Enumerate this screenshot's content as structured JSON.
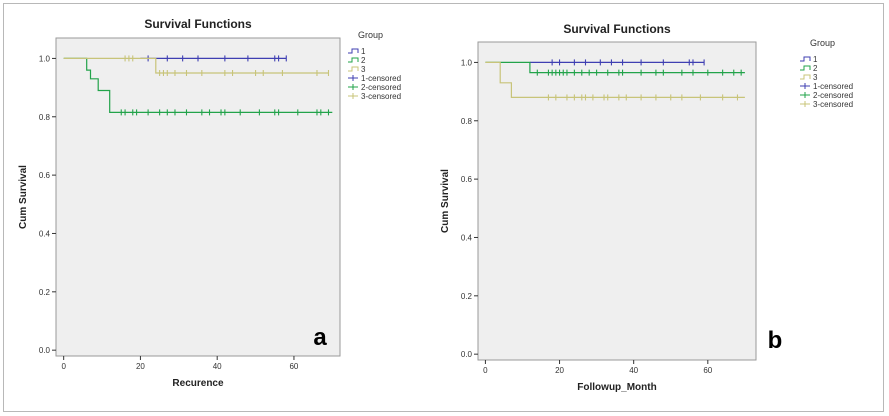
{
  "colors": {
    "group1": "#3f3fb2",
    "group2": "#22a34a",
    "group3": "#c8c479",
    "plot_bg": "#efefef",
    "axis": "#333333"
  },
  "chart_data": [
    {
      "type": "line",
      "subtype": "kaplan-meier",
      "panel_label": "a",
      "title": "Survival Functions",
      "xlabel": "Recurence",
      "ylabel": "Cum Survival",
      "xlim": [
        -2,
        72
      ],
      "ylim": [
        -0.02,
        1.07
      ],
      "xticks": [
        0,
        20,
        40,
        60
      ],
      "yticks": [
        0.0,
        0.2,
        0.4,
        0.6,
        0.8,
        1.0
      ],
      "ytick_labels": [
        "0.0",
        "0.2",
        "0.4",
        "0.6",
        "0.8",
        "1.0"
      ],
      "legend": {
        "title": "Group",
        "position": "right",
        "entries": [
          "1",
          "2",
          "3",
          "1-censored",
          "2-censored",
          "3-censored"
        ]
      },
      "series": [
        {
          "name": "1",
          "step": [
            [
              20,
              1.0
            ],
            [
              58,
              1.0
            ]
          ],
          "censored": [
            [
              22,
              1.0
            ],
            [
              27,
              1.0
            ],
            [
              31,
              1.0
            ],
            [
              35,
              1.0
            ],
            [
              42,
              1.0
            ],
            [
              48,
              1.0
            ],
            [
              55,
              1.0
            ],
            [
              56,
              1.0
            ],
            [
              58,
              1.0
            ]
          ]
        },
        {
          "name": "2",
          "step": [
            [
              0,
              1.0
            ],
            [
              6,
              1.0
            ],
            [
              6,
              0.96
            ],
            [
              7,
              0.96
            ],
            [
              7,
              0.93
            ],
            [
              9,
              0.93
            ],
            [
              9,
              0.89
            ],
            [
              12,
              0.89
            ],
            [
              12,
              0.815
            ],
            [
              70,
              0.815
            ]
          ],
          "censored": [
            [
              15,
              0.815
            ],
            [
              16,
              0.815
            ],
            [
              18,
              0.815
            ],
            [
              19,
              0.815
            ],
            [
              22,
              0.815
            ],
            [
              25,
              0.815
            ],
            [
              27,
              0.815
            ],
            [
              29,
              0.815
            ],
            [
              32,
              0.815
            ],
            [
              36,
              0.815
            ],
            [
              38,
              0.815
            ],
            [
              41,
              0.815
            ],
            [
              42,
              0.815
            ],
            [
              46,
              0.815
            ],
            [
              51,
              0.815
            ],
            [
              55,
              0.815
            ],
            [
              56,
              0.815
            ],
            [
              61,
              0.815
            ],
            [
              66,
              0.815
            ],
            [
              67,
              0.815
            ],
            [
              69,
              0.815
            ]
          ]
        },
        {
          "name": "3",
          "step": [
            [
              0,
              1.0
            ],
            [
              24,
              1.0
            ],
            [
              24,
              0.95
            ],
            [
              69,
              0.95
            ]
          ],
          "censored": [
            [
              16,
              1.0
            ],
            [
              17,
              1.0
            ],
            [
              18,
              1.0
            ],
            [
              25,
              0.95
            ],
            [
              26,
              0.95
            ],
            [
              27,
              0.95
            ],
            [
              29,
              0.95
            ],
            [
              32,
              0.95
            ],
            [
              36,
              0.95
            ],
            [
              42,
              0.95
            ],
            [
              44,
              0.95
            ],
            [
              50,
              0.95
            ],
            [
              52,
              0.95
            ],
            [
              57,
              0.95
            ],
            [
              66,
              0.95
            ],
            [
              69,
              0.95
            ]
          ]
        }
      ]
    },
    {
      "type": "line",
      "subtype": "kaplan-meier",
      "panel_label": "b",
      "title": "Survival Functions",
      "xlabel": "Followup_Month",
      "ylabel": "Cum Survival",
      "xlim": [
        -2,
        73
      ],
      "ylim": [
        -0.02,
        1.07
      ],
      "xticks": [
        0,
        20,
        40,
        60
      ],
      "yticks": [
        0.0,
        0.2,
        0.4,
        0.6,
        0.8,
        1.0
      ],
      "ytick_labels": [
        "0.0",
        "0.2",
        "0.4",
        "0.6",
        "0.8",
        "1.0"
      ],
      "legend": {
        "title": "Group",
        "position": "right",
        "entries": [
          "1",
          "2",
          "3",
          "1-censored",
          "2-censored",
          "3-censored"
        ]
      },
      "series": [
        {
          "name": "1",
          "step": [
            [
              12,
              1.0
            ],
            [
              59,
              1.0
            ]
          ],
          "censored": [
            [
              18,
              1.0
            ],
            [
              20,
              1.0
            ],
            [
              24,
              1.0
            ],
            [
              27,
              1.0
            ],
            [
              31,
              1.0
            ],
            [
              34,
              1.0
            ],
            [
              37,
              1.0
            ],
            [
              42,
              1.0
            ],
            [
              48,
              1.0
            ],
            [
              55,
              1.0
            ],
            [
              56,
              1.0
            ],
            [
              59,
              1.0
            ]
          ]
        },
        {
          "name": "2",
          "step": [
            [
              0,
              1.0
            ],
            [
              12,
              1.0
            ],
            [
              12,
              0.965
            ],
            [
              70,
              0.965
            ]
          ],
          "censored": [
            [
              14,
              0.965
            ],
            [
              17,
              0.965
            ],
            [
              18,
              0.965
            ],
            [
              19,
              0.965
            ],
            [
              20,
              0.965
            ],
            [
              21,
              0.965
            ],
            [
              22,
              0.965
            ],
            [
              24,
              0.965
            ],
            [
              26,
              0.965
            ],
            [
              28,
              0.965
            ],
            [
              30,
              0.965
            ],
            [
              33,
              0.965
            ],
            [
              36,
              0.965
            ],
            [
              37,
              0.965
            ],
            [
              42,
              0.965
            ],
            [
              46,
              0.965
            ],
            [
              48,
              0.965
            ],
            [
              53,
              0.965
            ],
            [
              56,
              0.965
            ],
            [
              60,
              0.965
            ],
            [
              64,
              0.965
            ],
            [
              67,
              0.965
            ],
            [
              69,
              0.965
            ]
          ]
        },
        {
          "name": "3",
          "step": [
            [
              0,
              1.0
            ],
            [
              4,
              1.0
            ],
            [
              4,
              0.93
            ],
            [
              7,
              0.93
            ],
            [
              7,
              0.88
            ],
            [
              70,
              0.88
            ]
          ],
          "censored": [
            [
              17,
              0.88
            ],
            [
              19,
              0.88
            ],
            [
              22,
              0.88
            ],
            [
              24,
              0.88
            ],
            [
              26,
              0.88
            ],
            [
              27,
              0.88
            ],
            [
              29,
              0.88
            ],
            [
              32,
              0.88
            ],
            [
              33,
              0.88
            ],
            [
              36,
              0.88
            ],
            [
              38,
              0.88
            ],
            [
              42,
              0.88
            ],
            [
              46,
              0.88
            ],
            [
              50,
              0.88
            ],
            [
              53,
              0.88
            ],
            [
              58,
              0.88
            ],
            [
              64,
              0.88
            ],
            [
              68,
              0.88
            ]
          ]
        }
      ]
    }
  ]
}
